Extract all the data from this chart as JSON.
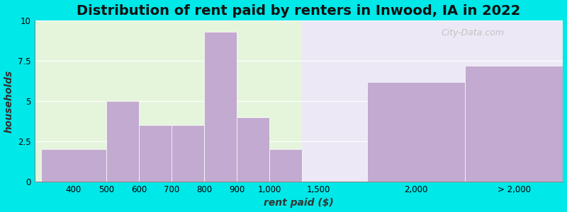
{
  "title": "Distribution of rent paid by renters in Inwood, IA in 2022",
  "xlabel": "rent paid ($)",
  "ylabel": "households",
  "bar_color": "#c2aad0",
  "background_outer": "#00e8e8",
  "background_inner_left": "#e5f5dc",
  "background_inner_right": "#ede8f5",
  "ylim": [
    0,
    10
  ],
  "yticks": [
    0,
    2.5,
    5,
    7.5,
    10
  ],
  "values": [
    2,
    5,
    3.5,
    3.5,
    9.3,
    4,
    2,
    6.2,
    7.2
  ],
  "labels": [
    "400",
    "500",
    "600",
    "700",
    "800",
    "900",
    "1,000",
    "2,000",
    "> 2,000"
  ],
  "left_edges": [
    0,
    2,
    3,
    4,
    5,
    6,
    7,
    10,
    13
  ],
  "bar_widths": [
    2,
    1,
    1,
    1,
    1,
    1,
    1,
    3,
    3
  ],
  "tick_positions": [
    1,
    2,
    3,
    4,
    5,
    6,
    7,
    8.5,
    11.5,
    14.5
  ],
  "tick_labels": [
    "400",
    "500",
    "600",
    "700",
    "800",
    "900",
    "1,000",
    "1,500",
    "2,000",
    "> 2,000"
  ],
  "left_bg_end": 8,
  "xlim_min": -0.2,
  "xlim_max": 16,
  "title_fontsize": 14,
  "axis_label_fontsize": 10,
  "tick_fontsize": 8.5,
  "watermark_text": "City-Data.com"
}
